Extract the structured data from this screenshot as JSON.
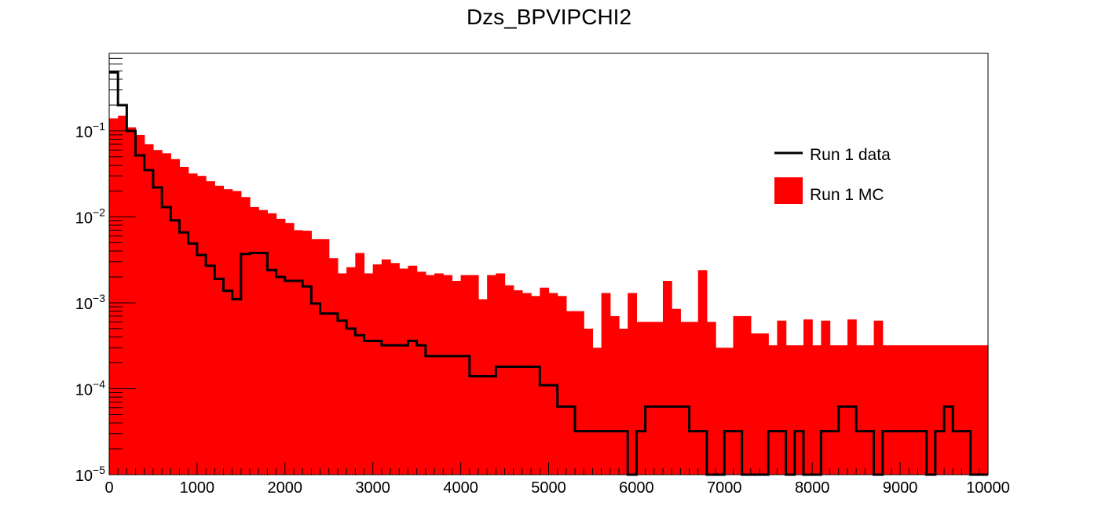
{
  "chart_data": {
    "type": "bar",
    "title": "Dzs_BPVIPCHI2",
    "xlabel": "",
    "ylabel": "",
    "xlim": [
      0,
      10000
    ],
    "ylim": [
      1e-05,
      0.8
    ],
    "y_scale": "log",
    "bin_width": 100,
    "x_ticks": [
      "0",
      "1000",
      "2000",
      "3000",
      "4000",
      "5000",
      "6000",
      "7000",
      "8000",
      "9000",
      "10000"
    ],
    "y_ticks": [
      {
        "value": 1e-05,
        "base": "10",
        "exp": "−5"
      },
      {
        "value": 0.0001,
        "base": "10",
        "exp": "−4"
      },
      {
        "value": 0.001,
        "base": "10",
        "exp": "−3"
      },
      {
        "value": 0.01,
        "base": "10",
        "exp": "−2"
      },
      {
        "value": 0.1,
        "base": "10",
        "exp": "−1"
      }
    ],
    "legend_position": "top-right",
    "colors": {
      "mc_fill": "#ff0000",
      "data_line": "#000000",
      "frame": "#000000"
    },
    "series": [
      {
        "name": "Run 1 data",
        "style": "step",
        "values": [
          0.48,
          0.2,
          0.1,
          0.052,
          0.035,
          0.022,
          0.013,
          0.0091,
          0.0066,
          0.0049,
          0.0036,
          0.0027,
          0.0019,
          0.00138,
          0.0011,
          0.0037,
          0.0038,
          0.0038,
          0.0024,
          0.002,
          0.0018,
          0.0018,
          0.00155,
          0.00098,
          0.00075,
          0.00075,
          0.00062,
          0.0005,
          0.00042,
          0.00036,
          0.00036,
          0.00032,
          0.00032,
          0.00032,
          0.00036,
          0.00032,
          0.00024,
          0.00024,
          0.00024,
          0.00024,
          0.00024,
          0.00014,
          0.00014,
          0.00014,
          0.00018,
          0.00018,
          0.00018,
          0.00018,
          0.00018,
          0.00011,
          0.00011,
          6.2e-05,
          6.2e-05,
          3.2e-05,
          3.2e-05,
          3.2e-05,
          3.2e-05,
          3.2e-05,
          3.2e-05,
          9.5e-06,
          3.2e-05,
          6.2e-05,
          6.2e-05,
          6.2e-05,
          6.2e-05,
          6.2e-05,
          3.2e-05,
          3.2e-05,
          9.5e-06,
          9.5e-06,
          3.2e-05,
          3.2e-05,
          9.5e-06,
          9.5e-06,
          9.5e-06,
          3.2e-05,
          3.2e-05,
          9.5e-06,
          3.2e-05,
          9.5e-06,
          9.5e-06,
          3.2e-05,
          3.2e-05,
          6.2e-05,
          6.2e-05,
          3.2e-05,
          3.2e-05,
          9.5e-06,
          3.2e-05,
          3.2e-05,
          3.2e-05,
          3.2e-05,
          3.2e-05,
          9.5e-06,
          3.2e-05,
          6.2e-05,
          3.2e-05,
          3.2e-05,
          9.5e-06,
          9.5e-06
        ]
      },
      {
        "name": "Run 1 MC",
        "style": "filled",
        "values": [
          0.14,
          0.15,
          0.11,
          0.09,
          0.07,
          0.06,
          0.055,
          0.047,
          0.038,
          0.032,
          0.03,
          0.026,
          0.023,
          0.021,
          0.02,
          0.017,
          0.013,
          0.012,
          0.011,
          0.0095,
          0.0085,
          0.007,
          0.0069,
          0.0055,
          0.0055,
          0.0033,
          0.0022,
          0.0026,
          0.0038,
          0.0022,
          0.0028,
          0.0032,
          0.0029,
          0.0025,
          0.0027,
          0.0023,
          0.0021,
          0.0022,
          0.0021,
          0.0018,
          0.0021,
          0.0021,
          0.0011,
          0.0021,
          0.0022,
          0.0016,
          0.0014,
          0.0013,
          0.0012,
          0.0015,
          0.0013,
          0.0012,
          0.0008,
          0.0008,
          0.0005,
          0.0003,
          0.0013,
          0.0007,
          0.0005,
          0.0013,
          0.0006,
          0.0006,
          0.0006,
          0.0018,
          0.00085,
          0.0006,
          0.0006,
          0.0024,
          0.0006,
          0.0003,
          0.0003,
          0.0007,
          0.0007,
          0.00044,
          0.00044,
          0.00032,
          0.00062,
          0.00032,
          0.00032,
          0.00064,
          0.00032,
          0.00062,
          0.00032,
          0.00032,
          0.00064,
          0.00032,
          0.00032,
          0.00062,
          0.00032,
          0.00032,
          0.00032,
          0.00032,
          0.00032,
          0.00032,
          0.00032,
          0.00032,
          0.00032,
          0.00032,
          0.00032,
          0.00032
        ]
      }
    ]
  }
}
